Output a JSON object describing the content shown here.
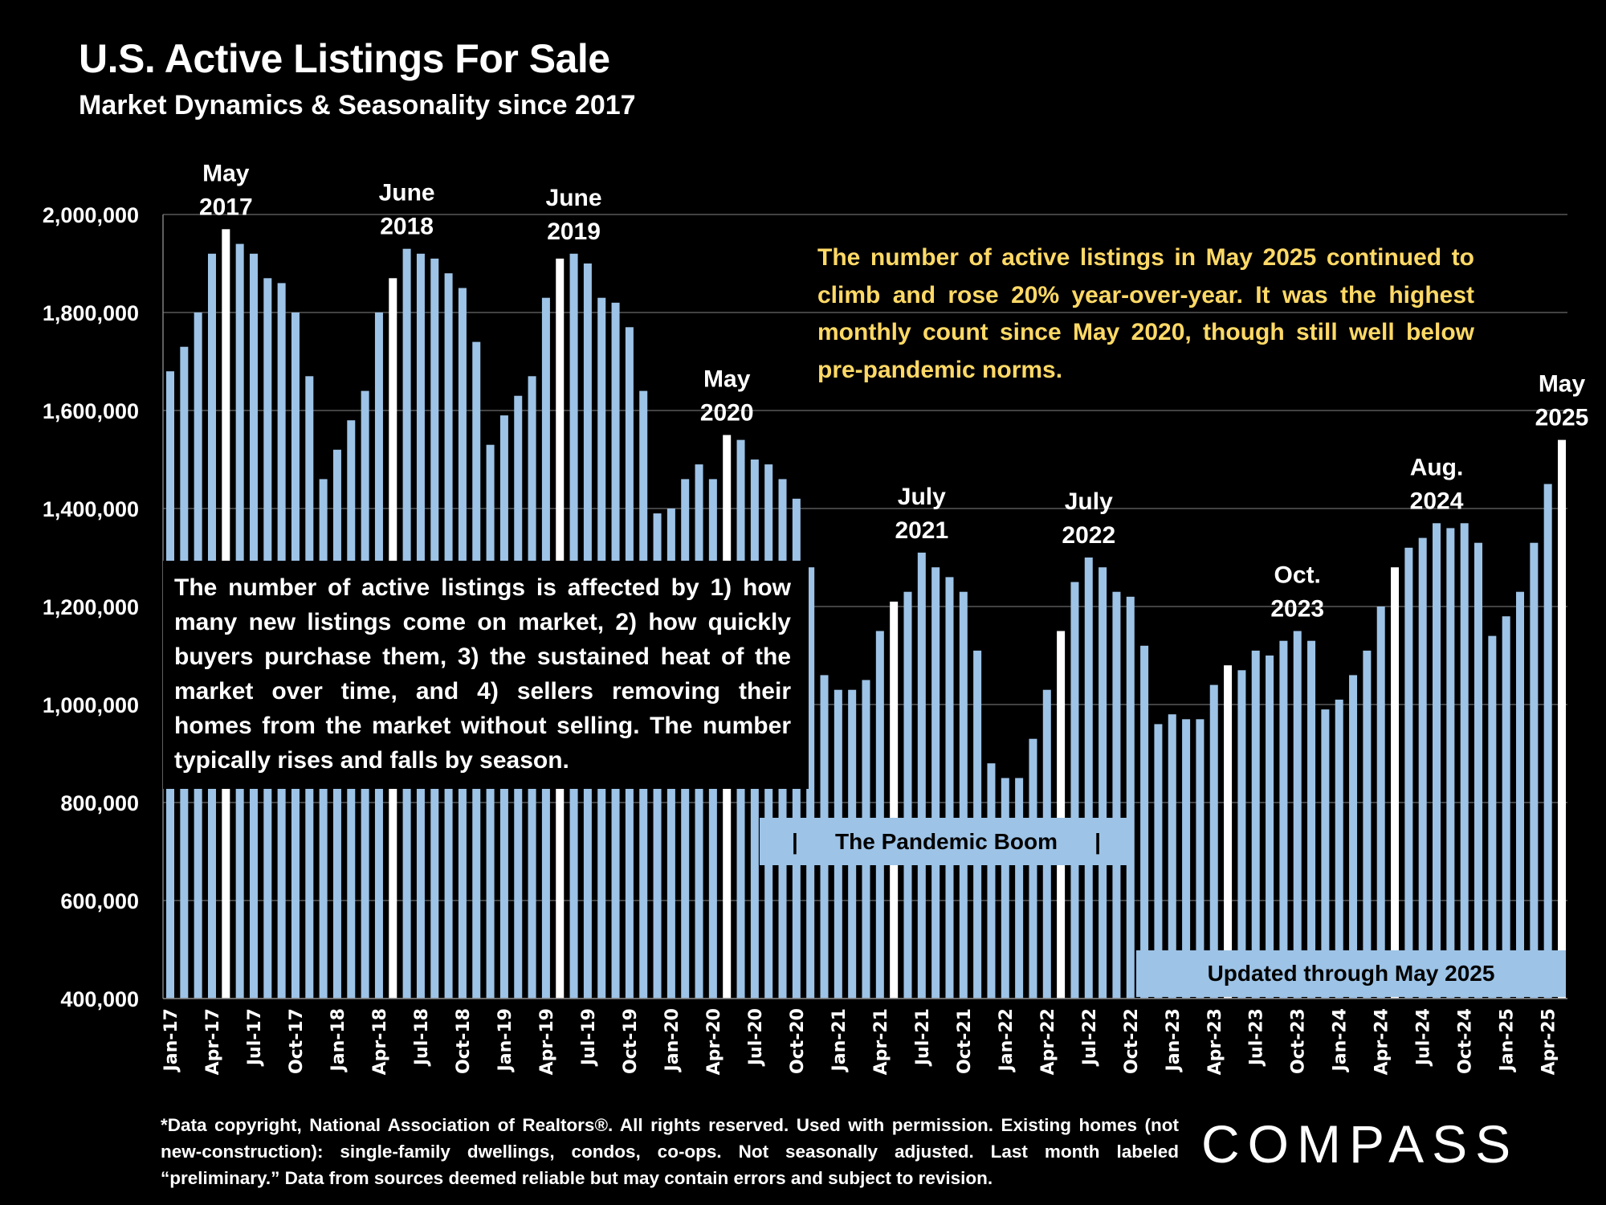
{
  "header": {
    "title": "U.S. Active Listings For Sale",
    "subtitle": "Market Dynamics & Seasonality since 2017"
  },
  "colors": {
    "background": "#000000",
    "bar": "#9dc3e6",
    "highlight_bar": "#ffffff",
    "gridline": "#595959",
    "callout_text": "#ffd966"
  },
  "notes": {
    "right": "The number of active listings in May 2025 continued to climb and rose 20% year-over-year. It was the highest monthly count since May 2020, though still well below pre-pandemic norms.",
    "left": "The number of active listings is affected by 1) how many new listings come on market, 2) how quickly buyers purchase them, 3) the sustained heat of the market over time, and 4) sellers removing their homes from the market without selling. The number typically rises and falls by season.",
    "pandemic_label": "The Pandemic Boom",
    "pandemic_bar_glyph": "|",
    "updated_label": "Updated through May 2025"
  },
  "footer": {
    "footnote": "*Data copyright, National Association of Realtors®. All rights reserved. Used with permission. Existing homes (not new-construction): single-family dwellings, condos, co-ops. Not seasonally adjusted. Last month labeled “preliminary.” Data from sources deemed reliable but may contain errors and subject to revision.",
    "logo": "COMPASS"
  },
  "chart_data": {
    "type": "bar",
    "title": "U.S. Active Listings For Sale",
    "subtitle": "Market Dynamics & Seasonality since 2017",
    "xlabel": "",
    "ylabel": "",
    "ylim": [
      400000,
      2000000
    ],
    "yticks": [
      400000,
      600000,
      800000,
      1000000,
      1200000,
      1400000,
      1600000,
      1800000,
      2000000
    ],
    "ytick_labels": [
      "400,000",
      "600,000",
      "800,000",
      "1,000,000",
      "1,200,000",
      "1,400,000",
      "1,600,000",
      "1,800,000",
      "2,000,000"
    ],
    "grid": true,
    "legend": "none",
    "start_month": "Jan-17",
    "xtick_every": 3,
    "xtick_labels": [
      "Jan-17",
      "Apr-17",
      "Jul-17",
      "Oct-17",
      "Jan-18",
      "Apr-18",
      "Jul-18",
      "Oct-18",
      "Jan-19",
      "Apr-19",
      "Jul-19",
      "Oct-19",
      "Jan-20",
      "Apr-20",
      "Jul-20",
      "Oct-20",
      "Jan-21",
      "Apr-21",
      "Jul-21",
      "Oct-21",
      "Jan-22",
      "Apr-22",
      "Jul-22",
      "Oct-22",
      "Jan-23",
      "Apr-23",
      "Jul-23",
      "Oct-23",
      "Jan-24",
      "Apr-24",
      "Jul-24",
      "Oct-24",
      "Jan-25",
      "Apr-25"
    ],
    "highlight_rule": "May of each year shown in white",
    "series": [
      {
        "name": "Active Listings",
        "values": [
          1680000,
          1730000,
          1800000,
          1920000,
          1970000,
          1940000,
          1920000,
          1870000,
          1860000,
          1800000,
          1670000,
          1460000,
          1520000,
          1580000,
          1640000,
          1800000,
          1870000,
          1930000,
          1920000,
          1910000,
          1880000,
          1850000,
          1740000,
          1530000,
          1590000,
          1630000,
          1670000,
          1830000,
          1910000,
          1920000,
          1900000,
          1830000,
          1820000,
          1770000,
          1640000,
          1390000,
          1400000,
          1460000,
          1490000,
          1460000,
          1550000,
          1540000,
          1500000,
          1490000,
          1460000,
          1420000,
          1280000,
          1060000,
          1030000,
          1030000,
          1050000,
          1150000,
          1210000,
          1230000,
          1310000,
          1280000,
          1260000,
          1230000,
          1110000,
          880000,
          850000,
          850000,
          930000,
          1030000,
          1150000,
          1250000,
          1300000,
          1280000,
          1230000,
          1220000,
          1120000,
          960000,
          980000,
          970000,
          970000,
          1040000,
          1080000,
          1070000,
          1110000,
          1100000,
          1130000,
          1150000,
          1130000,
          990000,
          1010000,
          1060000,
          1110000,
          1200000,
          1280000,
          1320000,
          1340000,
          1370000,
          1360000,
          1370000,
          1330000,
          1140000,
          1180000,
          1230000,
          1330000,
          1450000,
          1540000
        ]
      }
    ],
    "annotations": [
      {
        "lines": [
          "May",
          "2017"
        ],
        "month_index": 4
      },
      {
        "lines": [
          "June",
          "2018"
        ],
        "month_index": 17
      },
      {
        "lines": [
          "June",
          "2019"
        ],
        "month_index": 29
      },
      {
        "lines": [
          "May",
          "2020"
        ],
        "month_index": 40
      },
      {
        "lines": [
          "July",
          "2021"
        ],
        "month_index": 54
      },
      {
        "lines": [
          "July",
          "2022"
        ],
        "month_index": 66
      },
      {
        "lines": [
          "Oct.",
          "2023"
        ],
        "month_index": 81
      },
      {
        "lines": [
          "Aug.",
          "2024"
        ],
        "month_index": 91
      },
      {
        "lines": [
          "May",
          "2025"
        ],
        "month_index": 100
      }
    ]
  }
}
